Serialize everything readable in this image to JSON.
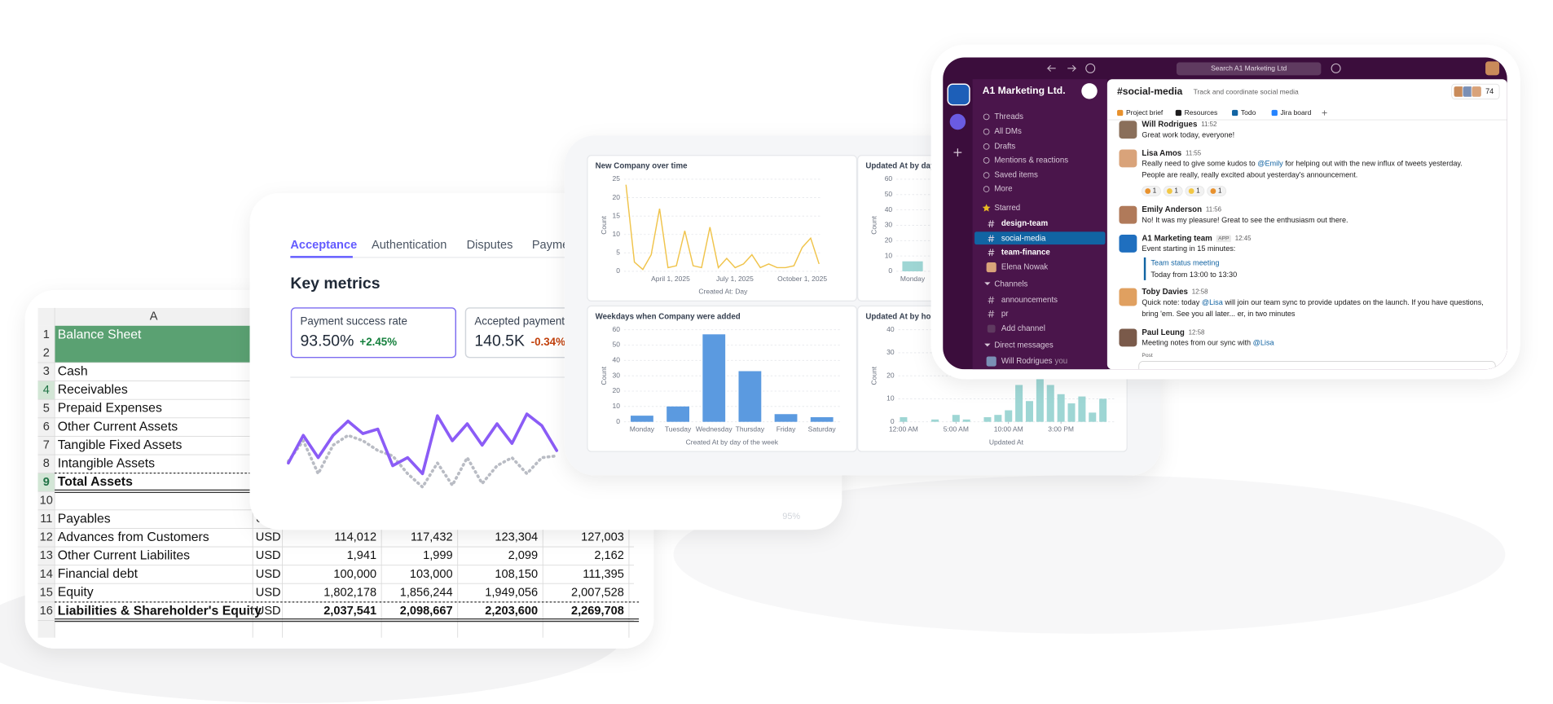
{
  "spreadsheet": {
    "column": "A",
    "rows": [
      {
        "num": 1,
        "label": "Balance Sheet"
      },
      {
        "num": 2
      },
      {
        "num": 3,
        "label": "Cash"
      },
      {
        "num": 4,
        "label": "Receivables"
      },
      {
        "num": 5,
        "label": "Prepaid Expenses"
      },
      {
        "num": 6,
        "label": "Other Current Assets"
      },
      {
        "num": 7,
        "label": "Tangible Fixed Assets"
      },
      {
        "num": 8,
        "label": "Intangible Assets"
      },
      {
        "num": 9,
        "label": "Total Assets"
      },
      {
        "num": 10
      },
      {
        "num": 11,
        "label": "Payables",
        "currency": "USD"
      },
      {
        "num": 12,
        "label": "Advances from Customers",
        "currency": "USD",
        "cells": [
          "114,012",
          "117,432",
          "123,304",
          "127,003"
        ]
      },
      {
        "num": 13,
        "label": "Other Current Liabilites",
        "currency": "USD",
        "cells": [
          "1,941",
          "1,999",
          "2,099",
          "2,162"
        ]
      },
      {
        "num": 14,
        "label": "Financial debt",
        "currency": "USD",
        "cells": [
          "100,000",
          "103,000",
          "108,150",
          "111,395"
        ]
      },
      {
        "num": 15,
        "label": "Equity",
        "currency": "USD",
        "cells": [
          "1,802,178",
          "1,856,244",
          "1,949,056",
          "2,007,528"
        ]
      },
      {
        "num": 16,
        "label": "Liabilities & Shareholder's Equity",
        "currency": "USD",
        "cells": [
          "2,037,541",
          "2,098,667",
          "2,203,600",
          "2,269,708"
        ]
      }
    ]
  },
  "payments": {
    "tabs": [
      "Acceptance",
      "Authentication",
      "Disputes",
      "Payments"
    ],
    "heading": "Key metrics",
    "metrics": [
      {
        "label": "Payment success rate",
        "value": "93.50%",
        "change": "+2.45%"
      },
      {
        "label": "Accepted payments",
        "value": "140.5K",
        "change": "-0.34%"
      }
    ],
    "chart": {
      "type": "line",
      "ylim": [
        0,
        100
      ],
      "series": [
        {
          "color": "#8b5cf6",
          "values": [
            36,
            67,
            42,
            67,
            83,
            69,
            74,
            33,
            42,
            24,
            89,
            61,
            80,
            56,
            80,
            58,
            91,
            78,
            50
          ]
        },
        {
          "color": "#b9bcc4",
          "values": [
            38,
            61,
            24,
            56,
            67,
            61,
            50,
            44,
            24,
            9,
            36,
            11,
            42,
            13,
            33,
            42,
            24,
            42,
            44
          ]
        }
      ],
      "annotation": "95%"
    }
  },
  "dashboard": {
    "charts": [
      {
        "type": "line",
        "title": "New Company over time",
        "ylabel": "Count",
        "xlabel": "Created At: Day",
        "color": "#f0c44c",
        "ylim": [
          0,
          25
        ],
        "yticks": [
          0,
          5,
          10,
          15,
          20,
          25
        ],
        "xtick_labels": [
          "April 1, 2025",
          "July 1, 2025",
          "October 1, 2025"
        ],
        "values": [
          23.5,
          2.5,
          0.5,
          4.5,
          17,
          1,
          1.5,
          11,
          1.5,
          1,
          12,
          1,
          3.5,
          1,
          2,
          4.5,
          1,
          2,
          1,
          1,
          1.5,
          6.5,
          9,
          2
        ]
      },
      {
        "type": "bar",
        "title": "Updated At by day",
        "ylabel": "Count",
        "color": "#9ed6d4",
        "ylim": [
          0,
          60
        ],
        "yticks": [
          0,
          10,
          20,
          30,
          40,
          50,
          60
        ],
        "categories": [
          "Monday"
        ],
        "values": [
          6.5
        ]
      },
      {
        "type": "bar",
        "title": "Weekdays when Company were added",
        "ylabel": "Count",
        "xlabel": "Created At by day of the week",
        "color": "#5b9ae0",
        "ylim": [
          0,
          60
        ],
        "yticks": [
          0,
          10,
          20,
          30,
          40,
          50,
          60
        ],
        "categories": [
          "Monday",
          "Tuesday",
          "Wednesday",
          "Thursday",
          "Friday",
          "Saturday"
        ],
        "values": [
          4,
          10,
          57,
          33,
          5,
          3
        ]
      },
      {
        "type": "hours",
        "title": "Updated At by hou",
        "ylabel": "Count",
        "xlabel": "Updated At",
        "color": "#9ed6d4",
        "ylim": [
          0,
          40
        ],
        "yticks": [
          0,
          10,
          20,
          30,
          40
        ],
        "xticks": [
          {
            "value": 0,
            "label": "12:00 AM"
          },
          {
            "value": 5,
            "label": "5:00 AM"
          },
          {
            "value": 10,
            "label": "10:00 AM"
          },
          {
            "value": 15,
            "label": "3:00 PM"
          }
        ],
        "values": [
          2,
          0,
          0,
          1,
          0,
          3,
          1,
          0,
          2,
          3,
          5,
          16,
          9,
          20,
          16,
          12,
          8,
          11,
          4,
          10
        ]
      }
    ]
  },
  "slack": {
    "search": "Search A1 Marketing Ltd",
    "workspace": "A1 Marketing Ltd.",
    "nav": [
      "Threads",
      "All DMs",
      "Drafts",
      "Mentions & reactions",
      "Saved items",
      "More"
    ],
    "starred_heading": "Starred",
    "starred": [
      "design-team",
      "social-media",
      "team-finance"
    ],
    "starred_dm": "Elena Nowak",
    "channels_heading": "Channels",
    "channels": [
      "announcements",
      "pr"
    ],
    "add_channel": "Add channel",
    "dm_heading": "Direct messages",
    "dm": {
      "name": "Will Rodrigues",
      "note": "you"
    },
    "channel": {
      "name": "#social-media",
      "topic": "Track and coordinate social media",
      "members": 74,
      "tabs": [
        "Project brief",
        "Resources",
        "Todo",
        "Jira board"
      ]
    },
    "messages": [
      {
        "author": "Will Rodrigues",
        "time": "11:52",
        "lines": [
          "Great work today, everyone!"
        ]
      },
      {
        "author": "Lisa Amos",
        "time": "11:55",
        "lines": [
          "Really need to give some kudos to @Emily for helping out with the new influx of tweets yesterday.",
          "People are really, really excited about yesterday's announcement."
        ],
        "reactions": [
          1,
          1,
          1,
          1
        ]
      },
      {
        "author": "Emily Anderson",
        "time": "11:56",
        "lines": [
          "No! It was my pleasure! Great to see the enthusiasm out there."
        ]
      },
      {
        "author": "A1 Marketing team",
        "badge": "APP",
        "time": "12:45",
        "lines": [
          "Event starting in 15 minutes:"
        ],
        "quote": {
          "title": "Team status meeting",
          "detail": "Today from 13:00 to 13:30"
        }
      },
      {
        "author": "Toby Davies",
        "time": "12:58",
        "lines": [
          "Quick note: today @Lisa will join our team sync to provide updates on the launch. If you have questions,",
          "bring 'em. See you all later... er, in two minutes"
        ]
      },
      {
        "author": "Paul Leung",
        "time": "12:58",
        "lines": [
          "Meeting notes from our sync with @Lisa"
        ]
      }
    ],
    "composer": "Post"
  }
}
